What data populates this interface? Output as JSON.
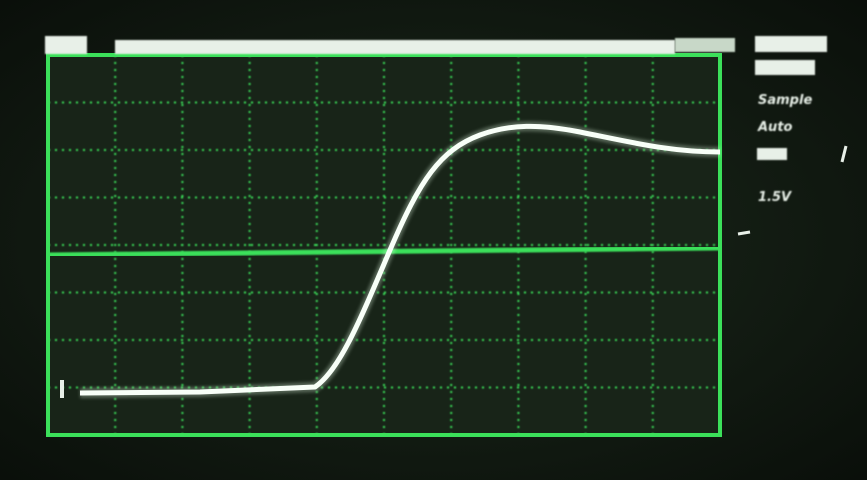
{
  "menu": {
    "mode": "Sample",
    "trigger": "Auto",
    "scale": "1.5V"
  }
}
